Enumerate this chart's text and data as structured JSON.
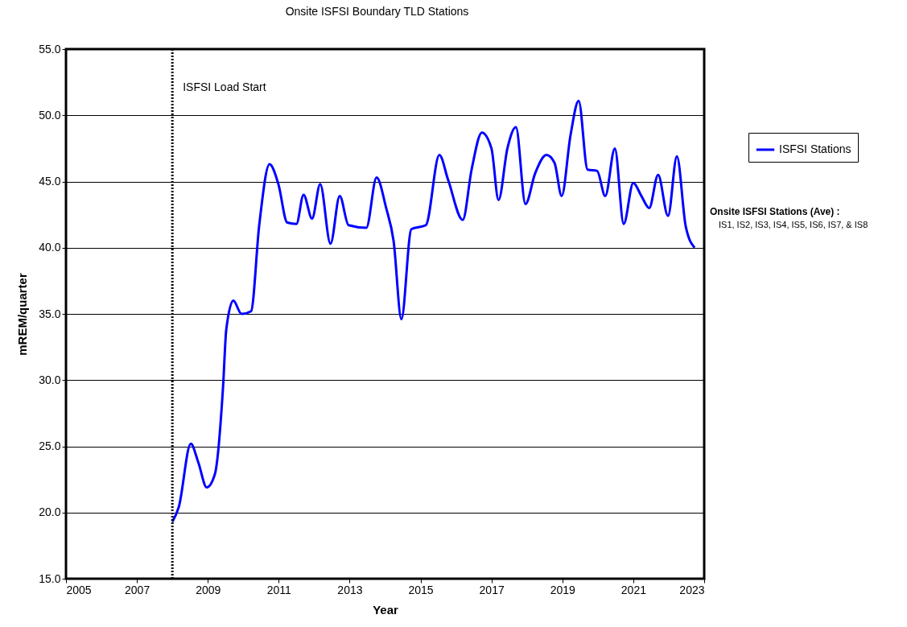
{
  "chart_data": {
    "type": "line",
    "title": "Onsite ISFSI Boundary TLD Stations",
    "xlabel": "Year",
    "ylabel": "mREM/quarter",
    "x": [
      2008.0,
      2008.18,
      2008.52,
      2008.73,
      2008.97,
      2009.2,
      2009.43,
      2009.52,
      2009.72,
      2009.95,
      2010.22,
      2010.45,
      2010.74,
      2010.99,
      2011.24,
      2011.5,
      2011.7,
      2011.94,
      2012.17,
      2012.46,
      2012.72,
      2012.97,
      2013.47,
      2013.76,
      2014.03,
      2014.24,
      2014.46,
      2014.74,
      2015.15,
      2015.53,
      2015.78,
      2016.19,
      2016.44,
      2016.73,
      2017.0,
      2017.2,
      2017.45,
      2017.69,
      2017.96,
      2018.23,
      2018.55,
      2018.78,
      2018.98,
      2019.23,
      2019.46,
      2019.71,
      2019.98,
      2020.21,
      2020.48,
      2020.73,
      2021.0,
      2021.23,
      2021.45,
      2021.7,
      2021.98,
      2022.23,
      2022.48,
      2022.73
    ],
    "series": [
      {
        "name": "ISFSI Stations",
        "color": "#0000ff",
        "values": [
          19.3,
          20.4,
          25.2,
          23.8,
          21.9,
          22.9,
          29.5,
          33.8,
          36.0,
          35.0,
          35.2,
          41.7,
          46.3,
          44.8,
          41.9,
          41.8,
          44.0,
          42.2,
          44.8,
          40.3,
          43.9,
          41.7,
          41.5,
          45.3,
          43.0,
          40.5,
          34.6,
          41.4,
          41.7,
          47.0,
          45.1,
          42.1,
          45.9,
          48.7,
          47.5,
          43.6,
          47.5,
          49.1,
          43.3,
          45.6,
          47.0,
          46.4,
          43.9,
          48.5,
          51.1,
          45.9,
          45.8,
          43.9,
          47.5,
          41.8,
          44.9,
          43.9,
          43.0,
          45.5,
          42.4,
          46.9,
          41.6,
          40.0
        ]
      }
    ],
    "xlim": [
      2005,
      2023
    ],
    "xticks": [
      2005,
      2007,
      2009,
      2011,
      2013,
      2015,
      2017,
      2019,
      2021,
      2023
    ],
    "ylim": [
      15,
      55
    ],
    "yticks": [
      {
        "value": 15,
        "label": "15.0"
      },
      {
        "value": 20,
        "label": "20.0"
      },
      {
        "value": 25,
        "label": "25.0"
      },
      {
        "value": 30,
        "label": "30.0"
      },
      {
        "value": 35,
        "label": "35.0"
      },
      {
        "value": 40,
        "label": "40.0"
      },
      {
        "value": 45,
        "label": "45.0"
      },
      {
        "value": 50,
        "label": "50.0"
      },
      {
        "value": 55,
        "label": "55.0"
      }
    ],
    "grid": "y",
    "legend": "right",
    "marker": "none",
    "line_style": "solid",
    "ref_lines": [
      {
        "axis": "x",
        "value": 2008,
        "label": "ISFSI Load Start",
        "color": "#000000",
        "line_style": "dotted"
      }
    ],
    "annotations": [
      "Onsite ISFSI Stations (Ave) :",
      "IS1, IS2, IS3, IS4, IS5, IS6, IS7, & IS8"
    ]
  }
}
